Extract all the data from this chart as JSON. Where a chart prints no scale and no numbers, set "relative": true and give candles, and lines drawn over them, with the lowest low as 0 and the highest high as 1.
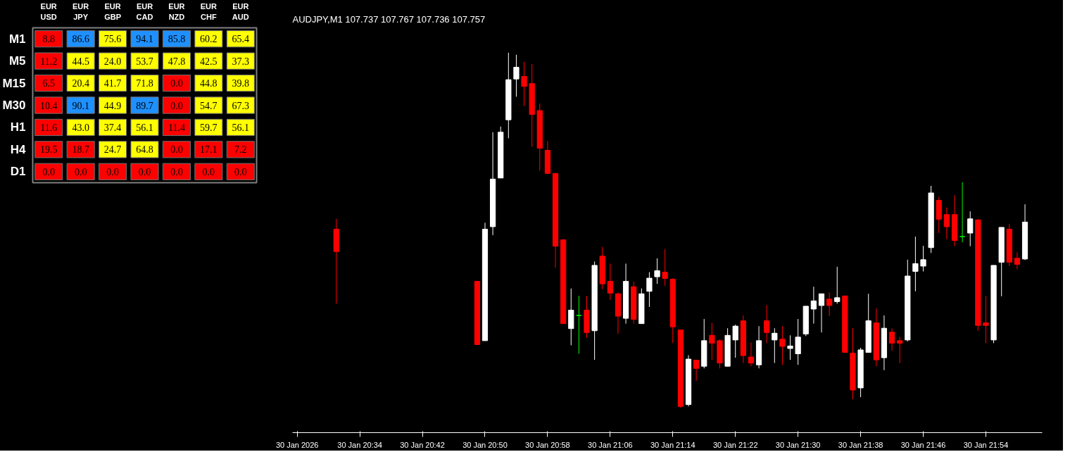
{
  "chart_data": [
    {
      "type": "heatmap",
      "categories": [
        "EUR\nUSD",
        "EUR\nJPY",
        "EUR\nGBP",
        "EUR\nCAD",
        "EUR\nNZD",
        "EUR\nCHF",
        "EUR\nAUD"
      ],
      "y_categories": [
        "M1",
        "M5",
        "M15",
        "M30",
        "H1",
        "H4",
        "D1"
      ],
      "data_labels": true,
      "cell_labels": [
        [
          "8.8",
          "86.6",
          "75.6",
          "94.1",
          "85.8",
          "60.2",
          "65.4"
        ],
        [
          "11.2",
          "44.5",
          "24.0",
          "53.7",
          "47.8",
          "42.5",
          "37.3"
        ],
        [
          "6.5",
          "20.4",
          "41.7",
          "71.8",
          "0.0",
          "44.8",
          "39.8"
        ],
        [
          "10.4",
          "90.1",
          "44.9",
          "89.7",
          "0.0",
          "54.7",
          "67.3"
        ],
        [
          "11.6",
          "43.0",
          "37.4",
          "56.1",
          "11.4",
          "59.7",
          "56.1"
        ],
        [
          "19.5",
          "18.7",
          "24.7",
          "64.8",
          "0.0",
          "17.1",
          "7.2"
        ],
        [
          "0.0",
          "0.0",
          "0.0",
          "0.0",
          "0.0",
          "0.0",
          "0.0"
        ]
      ],
      "cells": [
        [
          8.8,
          86.6,
          75.6,
          94.1,
          85.8,
          60.2,
          65.4
        ],
        [
          11.2,
          44.5,
          24.0,
          53.7,
          47.8,
          42.5,
          37.3
        ],
        [
          6.5,
          20.4,
          41.7,
          71.8,
          0.0,
          44.8,
          39.8
        ],
        [
          10.4,
          90.1,
          44.9,
          89.7,
          0.0,
          54.7,
          67.3
        ],
        [
          11.6,
          43.0,
          37.4,
          56.1,
          11.4,
          59.7,
          56.1
        ],
        [
          19.5,
          18.7,
          24.7,
          64.8,
          0.0,
          17.1,
          7.2
        ],
        [
          0.0,
          0.0,
          0.0,
          0.0,
          0.0,
          0.0,
          0.0
        ]
      ],
      "colors": [
        [
          "#ff0000",
          "#1e90ff",
          "#ffff00",
          "#1e90ff",
          "#1e90ff",
          "#ffff00",
          "#ffff00"
        ],
        [
          "#ff0000",
          "#ffff00",
          "#ffff00",
          "#ffff00",
          "#ffff00",
          "#ffff00",
          "#ffff00"
        ],
        [
          "#ff0000",
          "#ffff00",
          "#ffff00",
          "#ffff00",
          "#ff0000",
          "#ffff00",
          "#ffff00"
        ],
        [
          "#ff0000",
          "#1e90ff",
          "#ffff00",
          "#1e90ff",
          "#ff0000",
          "#ffff00",
          "#ffff00"
        ],
        [
          "#ff0000",
          "#ffff00",
          "#ffff00",
          "#ffff00",
          "#ff0000",
          "#ffff00",
          "#ffff00"
        ],
        [
          "#ff0000",
          "#ff0000",
          "#ffff00",
          "#ffff00",
          "#ff0000",
          "#ff0000",
          "#ff0000"
        ],
        [
          "#ff0000",
          "#ff0000",
          "#ff0000",
          "#ff0000",
          "#ff0000",
          "#ff0000",
          "#ff0000"
        ]
      ]
    },
    {
      "type": "candlestick",
      "title": "AUDJPY,M1  107.737 107.767 107.736 107.757",
      "relative": true,
      "tick_labels": "x",
      "categories": [
        "30 Jan 2026",
        null,
        null,
        null,
        null,
        null,
        null,
        null,
        "30 Jan 20:34",
        null,
        null,
        null,
        null,
        null,
        null,
        null,
        "30 Jan 20:42",
        null,
        null,
        null,
        null,
        null,
        null,
        null,
        "30 Jan 20:50",
        null,
        null,
        null,
        null,
        null,
        null,
        null,
        "30 Jan 20:58",
        null,
        null,
        null,
        null,
        null,
        null,
        null,
        "30 Jan 21:06",
        null,
        null,
        null,
        null,
        null,
        null,
        null,
        "30 Jan 21:14",
        null,
        null,
        null,
        null,
        null,
        null,
        null,
        "30 Jan 21:22",
        null,
        null,
        null,
        null,
        null,
        null,
        null,
        "30 Jan 21:30",
        null,
        null,
        null,
        null,
        null,
        null,
        null,
        "30 Jan 21:38",
        null,
        null,
        null,
        null,
        null,
        null,
        null,
        "30 Jan 21:46",
        null,
        null,
        null,
        null,
        null,
        null,
        null,
        "30 Jan 21:54",
        null,
        null,
        null,
        null,
        null
      ],
      "ohlc": [
        null,
        null,
        null,
        null,
        null,
        [
          0.503,
          0.532,
          0.293,
          0.44
        ],
        null,
        null,
        null,
        null,
        null,
        null,
        null,
        null,
        null,
        null,
        null,
        null,
        null,
        null,
        null,
        null,
        null,
        [
          0.356,
          0.356,
          0.178,
          0.178
        ],
        [
          0.189,
          0.521,
          0.189,
          0.503
        ],
        [
          0.51,
          0.776,
          0.486,
          0.644
        ],
        [
          0.647,
          0.792,
          0.647,
          0.776
        ],
        [
          0.811,
          1.0,
          0.759,
          0.924
        ],
        [
          0.926,
          0.994,
          0.876,
          0.959
        ],
        [
          0.933,
          0.974,
          0.85,
          0.905
        ],
        [
          0.913,
          0.968,
          0.735,
          0.826
        ],
        [
          0.837,
          0.857,
          0.668,
          0.731
        ],
        [
          0.725,
          0.751,
          0.659,
          0.66
        ],
        [
          0.66,
          0.66,
          0.395,
          0.455
        ],
        [
          0.473,
          0.473,
          0.237,
          0.237
        ],
        [
          0.223,
          0.336,
          0.176,
          0.275
        ],
        [
          0.26,
          0.315,
          0.152,
          0.26
        ],
        [
          0.275,
          0.315,
          0.197,
          0.212
        ],
        [
          0.217,
          0.412,
          0.135,
          0.401
        ],
        [
          0.427,
          0.453,
          0.334,
          0.349
        ],
        [
          0.356,
          0.406,
          0.304,
          0.323
        ],
        [
          0.321,
          0.325,
          0.208,
          0.258
        ],
        [
          0.252,
          0.406,
          0.237,
          0.356
        ],
        [
          0.341,
          0.356,
          0.237,
          0.249
        ],
        [
          0.237,
          0.336,
          0.237,
          0.321
        ],
        [
          0.328,
          0.382,
          0.284,
          0.365
        ],
        [
          0.369,
          0.421,
          0.349,
          0.386
        ],
        [
          0.382,
          0.447,
          0.343,
          0.364
        ],
        [
          0.362,
          0.365,
          0.182,
          0.228
        ],
        [
          0.219,
          0.219,
          0.0,
          0.004
        ],
        [
          0.009,
          0.148,
          0.004,
          0.137
        ],
        [
          0.134,
          0.134,
          0.076,
          0.111
        ],
        [
          0.117,
          0.25,
          0.111,
          0.189
        ],
        [
          0.204,
          0.239,
          0.135,
          0.182
        ],
        [
          0.189,
          0.193,
          0.111,
          0.126
        ],
        [
          0.117,
          0.224,
          0.117,
          0.204
        ],
        [
          0.191,
          0.234,
          0.141,
          0.23
        ],
        [
          0.245,
          0.26,
          0.126,
          0.147
        ],
        [
          0.143,
          0.184,
          0.117,
          0.126
        ],
        [
          0.121,
          0.23,
          0.111,
          0.189
        ],
        [
          0.245,
          0.289,
          0.182,
          0.212
        ],
        [
          0.191,
          0.224,
          0.126,
          0.21
        ],
        [
          0.193,
          0.23,
          0.121,
          0.173
        ],
        [
          0.167,
          0.204,
          0.135,
          0.174
        ],
        [
          0.152,
          0.25,
          0.121,
          0.199
        ],
        [
          0.208,
          0.286,
          0.202,
          0.286
        ],
        [
          0.278,
          0.341,
          0.237,
          0.301
        ],
        [
          0.288,
          0.321,
          0.212,
          0.321
        ],
        [
          0.306,
          0.325,
          0.258,
          0.288
        ],
        [
          0.299,
          0.397,
          0.293,
          0.31
        ],
        [
          0.315,
          0.315,
          0.156,
          0.156
        ],
        [
          0.154,
          0.224,
          0.024,
          0.05
        ],
        [
          0.056,
          0.169,
          0.03,
          0.163
        ],
        [
          0.156,
          0.321,
          0.156,
          0.245
        ],
        [
          0.239,
          0.28,
          0.117,
          0.135
        ],
        [
          0.141,
          0.26,
          0.106,
          0.224
        ],
        [
          0.213,
          0.224,
          0.161,
          0.182
        ],
        [
          0.189,
          0.199,
          0.126,
          0.182
        ],
        [
          0.191,
          0.417,
          0.187,
          0.371
        ],
        [
          0.384,
          0.482,
          0.328,
          0.406
        ],
        [
          0.399,
          0.456,
          0.384,
          0.417
        ],
        [
          0.451,
          0.625,
          0.436,
          0.605
        ],
        [
          0.584,
          0.594,
          0.492,
          0.531
        ],
        [
          0.544,
          0.564,
          0.475,
          0.51
        ],
        [
          0.544,
          0.599,
          0.455,
          0.471
        ],
        [
          0.482,
          0.635,
          0.466,
          0.482
        ],
        [
          0.492,
          0.553,
          0.455,
          0.532
        ],
        [
          0.529,
          0.532,
          0.217,
          0.232
        ],
        [
          0.239,
          0.315,
          0.182,
          0.232
        ],
        [
          0.191,
          0.401,
          0.182,
          0.401
        ],
        [
          0.41,
          0.508,
          0.314,
          0.508
        ],
        [
          0.503,
          0.518,
          0.399,
          0.41
        ],
        [
          0.421,
          0.438,
          0.39,
          0.404
        ],
        [
          0.419,
          0.573,
          0.416,
          0.523
        ]
      ],
      "colors": [
        null,
        null,
        null,
        null,
        null,
        "#ff0000",
        null,
        null,
        null,
        null,
        null,
        null,
        null,
        null,
        null,
        null,
        null,
        null,
        null,
        null,
        null,
        null,
        null,
        "#ff0000",
        "#ffffff",
        "#ffffff",
        "#ffffff",
        "#ffffff",
        "#ffffff",
        "#ff0000",
        "#ff0000",
        "#ff0000",
        "#ff0000",
        "#ff0000",
        "#ff0000",
        "#ffffff",
        "#00ff00",
        "#ff0000",
        "#ffffff",
        "#ff0000",
        "#ff0000",
        "#ff0000",
        "#ffffff",
        "#ff0000",
        "#ffffff",
        "#ffffff",
        "#ffffff",
        "#ff0000",
        "#ff0000",
        "#ff0000",
        "#ffffff",
        "#ff0000",
        "#ffffff",
        "#ff0000",
        "#ff0000",
        "#ffffff",
        "#ffffff",
        "#ff0000",
        "#ff0000",
        "#ffffff",
        "#ff0000",
        "#ffffff",
        "#ff0000",
        "#ffffff",
        "#ffffff",
        "#ffffff",
        "#ffffff",
        "#ffffff",
        "#ff0000",
        "#ffffff",
        "#ff0000",
        "#ff0000",
        "#ffffff",
        "#ffffff",
        "#ff0000",
        "#ffffff",
        "#ff0000",
        "#ff0000",
        "#ffffff",
        "#ffffff",
        "#ffffff",
        "#ffffff",
        "#ff0000",
        "#ff0000",
        "#ff0000",
        "#00ff00",
        "#ffffff",
        "#ff0000",
        "#ff0000",
        "#ffffff",
        "#ffffff",
        "#ff0000",
        "#ff0000",
        "#ffffff"
      ]
    }
  ]
}
